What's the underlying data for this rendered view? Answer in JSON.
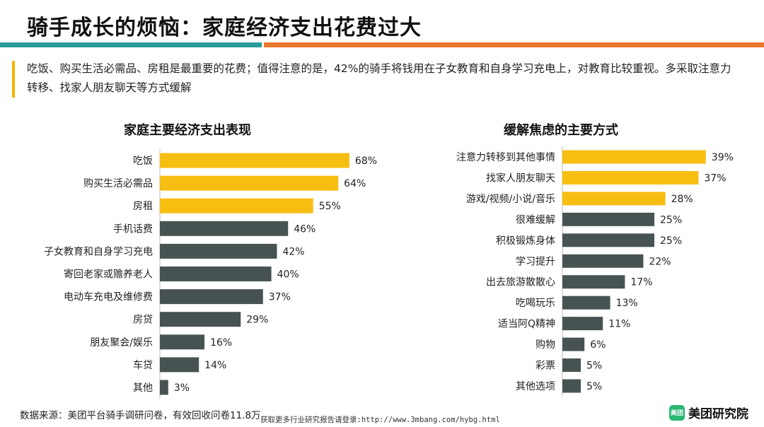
{
  "page": {
    "title": "骑手成长的烦恼：家庭经济支出花费过大",
    "description": "吃饭、购买生活必需品、房租是最重要的花费；值得注意的是，42%的骑手将钱用在子女教育和自身学习充电上，对教育比较重视。多采取注意力转移、找家人朋友聊天等方式缓解",
    "source": "数据来源：美团平台骑手调研问卷，有效回收问卷11.8万",
    "footer_url": "获取更多行业研究报告请登录:http://www.3mbang.com/hybg.html",
    "logo_icon_text": "美团",
    "logo_text": "美团研究院"
  },
  "colors": {
    "teal": "#2a9d9d",
    "orange": "#e8782a",
    "highlight": "#f7be12",
    "dark": "#475353"
  },
  "chart_data": [
    {
      "type": "bar",
      "orientation": "horizontal",
      "title": "家庭主要经济支出表现",
      "categories": [
        "吃饭",
        "购买生活必需品",
        "房租",
        "手机话费",
        "子女教育和自身学习充电",
        "寄回老家或赡养老人",
        "电动车充电及维修费",
        "房贷",
        "朋友聚会/娱乐",
        "车贷",
        "其他"
      ],
      "values": [
        68,
        64,
        55,
        46,
        42,
        40,
        37,
        29,
        16,
        14,
        3
      ],
      "labels": [
        "68%",
        "64%",
        "55%",
        "46%",
        "42%",
        "40%",
        "37%",
        "29%",
        "16%",
        "14%",
        "3%"
      ],
      "highlight_count": 3,
      "unit": "%",
      "xlim": [
        0,
        70
      ]
    },
    {
      "type": "bar",
      "orientation": "horizontal",
      "title": "缓解焦虑的主要方式",
      "categories": [
        "注意力转移到其他事情",
        "找家人朋友聊天",
        "游戏/视频/小说/音乐",
        "很难缓解",
        "积极锻炼身体",
        "学习提升",
        "出去旅游散散心",
        "吃喝玩乐",
        "适当阿Q精神",
        "购物",
        "彩票",
        "其他选项"
      ],
      "values": [
        39,
        37,
        28,
        25,
        25,
        22,
        17,
        13,
        11,
        6,
        5,
        5
      ],
      "labels": [
        "39%",
        "37%",
        "28%",
        "25%",
        "25%",
        "22%",
        "17%",
        "13%",
        "11%",
        "6%",
        "5%",
        "5%"
      ],
      "highlight_count": 3,
      "unit": "%",
      "xlim": [
        0,
        40
      ]
    }
  ]
}
